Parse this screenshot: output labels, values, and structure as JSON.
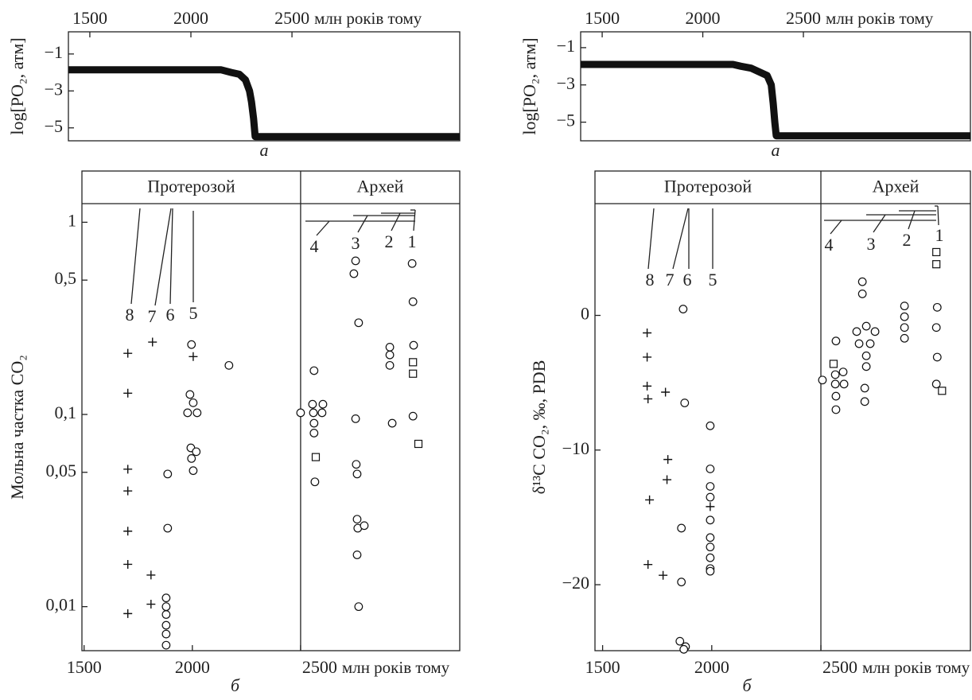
{
  "chart_data": [
    {
      "type": "line",
      "xaxis": "top",
      "ylabel": "log[PO₂, атм]",
      "xlabel": "млн років тому",
      "panel_label": "а",
      "x": [
        1394,
        1800,
        2150,
        2200,
        2240,
        2270,
        2290,
        2300,
        2310,
        2318,
        3330
      ],
      "series": [
        {
          "color": "#111111",
          "values": [
            -1.86,
            -1.86,
            -1.86,
            -2.0,
            -2.1,
            -2.4,
            -3.0,
            -3.6,
            -4.5,
            -5.47,
            -5.47
          ]
        }
      ],
      "xlim": [
        1394,
        3330
      ],
      "ylim": [
        -5.7,
        0.2
      ],
      "xticks": [
        1500,
        2000,
        2500
      ],
      "yticks": [
        {
          "value": -1,
          "label": "−1"
        },
        {
          "value": -3,
          "label": "−3"
        },
        {
          "value": -5,
          "label": "−5"
        }
      ]
    },
    {
      "type": "line",
      "xaxis": "top",
      "ylabel": "log[PO₂, атм]",
      "xlabel": "млн років тому",
      "panel_label": "а",
      "x": [
        1393,
        1800,
        2150,
        2190,
        2240,
        2320,
        2340,
        2350,
        2358,
        2365,
        3330
      ],
      "series": [
        {
          "color": "#111111",
          "values": [
            -1.9,
            -1.9,
            -1.9,
            -2.0,
            -2.1,
            -2.5,
            -3.0,
            -4.0,
            -5.0,
            -5.73,
            -5.73
          ]
        }
      ],
      "xlim": [
        1393,
        3330
      ],
      "ylim": [
        -6.0,
        -0.15
      ],
      "xticks": [
        1500,
        2000,
        2500
      ],
      "yticks": [
        {
          "value": -1,
          "label": "−1"
        },
        {
          "value": -3,
          "label": "−3"
        },
        {
          "value": -5,
          "label": "−5"
        }
      ]
    },
    {
      "type": "scatter",
      "xaxis": "bottom",
      "log_y": true,
      "ylabel": "Мольна частка CO₂",
      "xlabel": "млн років тому",
      "panel_label": "б",
      "eras": [
        "Протерозой",
        "Архей"
      ],
      "era_boundary": 2500,
      "annotations": [
        "8",
        "7",
        "6",
        "5",
        "4",
        "3",
        "2",
        "1"
      ],
      "xlim": [
        1490,
        3235
      ],
      "ylim": [
        0.0059,
        1.25
      ],
      "xticks": [
        1500,
        2000,
        2500
      ],
      "yticks": [
        1,
        {
          "value": 0.5,
          "label": "0,5"
        },
        {
          "value": 0.1,
          "label": "0,1"
        },
        {
          "value": 0.05,
          "label": "0,05"
        },
        {
          "value": 0.01,
          "label": "0,01"
        }
      ],
      "series": [
        {
          "marker": "plus",
          "color": "#111111",
          "x": [
            1702,
            1702,
            1702,
            1702,
            1702,
            1702,
            1702,
            1816,
            1809,
            1809,
            2004
          ],
          "values": [
            0.208,
            0.129,
            0.0519,
            0.04,
            0.0247,
            0.0166,
            0.0092,
            0.238,
            0.0146,
            0.0103,
            0.2
          ]
        },
        {
          "marker": "circle",
          "color": "#111111",
          "x": [
            1886,
            1886,
            1879,
            1879,
            1879,
            1879,
            1879,
            1879,
            1996,
            2169,
            1989,
            2004,
            1978,
            2022,
            1993,
            1996,
            2018,
            2004,
            2500,
            2562,
            2555,
            2603,
            2559,
            2599,
            2562,
            2562,
            2566,
            2754,
            2746,
            2768,
            2754,
            2757,
            2761,
            2761,
            2764,
            2794,
            2761,
            2768,
            2912,
            2912,
            2912,
            2923,
            3015,
            3019,
            3022,
            3019
          ],
          "values": [
            0.049,
            0.0256,
            0.0111,
            0.01,
            0.0091,
            0.008,
            0.0072,
            0.0063,
            0.231,
            0.18,
            0.127,
            0.115,
            0.102,
            0.102,
            0.067,
            0.059,
            0.064,
            0.051,
            0.102,
            0.169,
            0.113,
            0.113,
            0.102,
            0.102,
            0.09,
            0.08,
            0.0446,
            0.63,
            0.54,
            0.3,
            0.095,
            0.055,
            0.049,
            0.0285,
            0.0256,
            0.0264,
            0.0186,
            0.01,
            0.224,
            0.204,
            0.18,
            0.09,
            0.61,
            0.386,
            0.229,
            0.098
          ]
        },
        {
          "marker": "square",
          "color": "#111111",
          "x": [
            2570,
            3019,
            3019,
            3044
          ],
          "values": [
            0.06,
            0.187,
            0.163,
            0.0703
          ]
        }
      ]
    },
    {
      "type": "scatter",
      "xaxis": "bottom",
      "log_y": false,
      "ylabel": "δ¹³C CO₂, ‰, PDB",
      "xlabel": "млн років тому",
      "panel_label": "б",
      "eras": [
        "Протерозой",
        "Архей"
      ],
      "era_boundary": 2500,
      "annotations": [
        "8",
        "7",
        "6",
        "5",
        "4",
        "3",
        "2",
        "1"
      ],
      "xlim": [
        1465,
        3185
      ],
      "ylim": [
        -24.9,
        8.3
      ],
      "xticks": [
        1500,
        2000,
        2500
      ],
      "yticks": [
        0,
        {
          "value": -10,
          "label": "−10"
        },
        {
          "value": -20,
          "label": "−20"
        }
      ],
      "series": [
        {
          "marker": "plus",
          "color": "#111111",
          "x": [
            1704,
            1704,
            1704,
            1708,
            1788,
            1799,
            1795,
            1715,
            1708,
            1777,
            1993
          ],
          "values": [
            -1.3,
            -3.1,
            -5.25,
            -6.2,
            -5.7,
            -10.7,
            -12.2,
            -13.7,
            -18.5,
            -19.3,
            -14.2
          ]
        },
        {
          "marker": "circle",
          "color": "#111111",
          "x": [
            1869,
            1876,
            1861,
            1861,
            1854,
            1880,
            1872,
            1993,
            1993,
            1993,
            1993,
            1993,
            1993,
            1993,
            1993,
            1993,
            1993,
            2507,
            2569,
            2566,
            2602,
            2566,
            2606,
            2569,
            2569,
            2690,
            2690,
            2664,
            2708,
            2748,
            2675,
            2726,
            2708,
            2708,
            2701,
            2701,
            2883,
            2883,
            2883,
            2883,
            3033,
            3029,
            3033,
            3029
          ],
          "values": [
            0.47,
            -6.5,
            -15.8,
            -19.8,
            -24.2,
            -24.6,
            -24.8,
            -8.2,
            -11.4,
            -12.7,
            -13.5,
            -15.2,
            -16.5,
            -17.2,
            -18.0,
            -18.8,
            -19.0,
            -4.8,
            -1.9,
            -4.4,
            -4.2,
            -5.1,
            -5.1,
            -6.0,
            -7.0,
            2.5,
            1.6,
            -1.2,
            -0.8,
            -1.2,
            -2.1,
            -2.1,
            -3.0,
            -3.8,
            -5.4,
            -6.4,
            0.7,
            -0.1,
            -0.9,
            -1.7,
            0.6,
            -0.9,
            -3.1,
            -5.1
          ]
        },
        {
          "marker": "square",
          "color": "#111111",
          "x": [
            2558,
            3029,
            3029,
            3055
          ],
          "values": [
            -3.6,
            4.7,
            3.8,
            -5.6
          ]
        }
      ]
    }
  ]
}
